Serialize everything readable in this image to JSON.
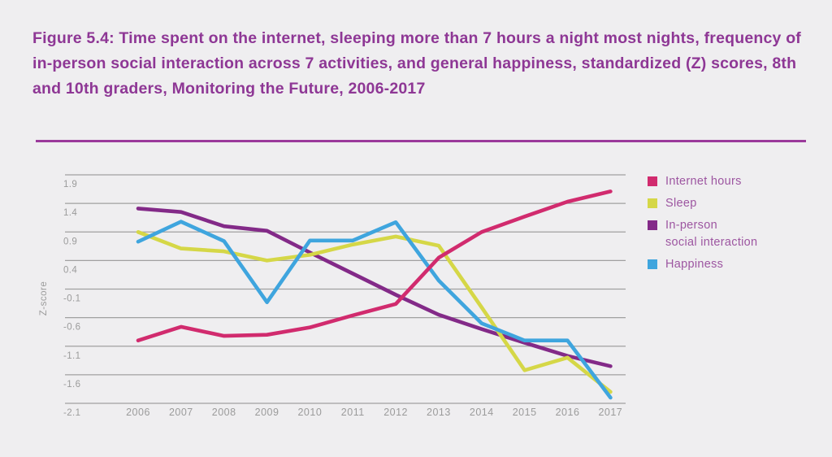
{
  "figure": {
    "title": "Figure 5.4: Time spent on the internet, sleeping more than 7 hours a night most nights, frequency of in-person social interaction across 7 activities, and general happiness, standardized (Z) scores, 8th and 10th graders, Monitoring the Future, 2006-2017"
  },
  "colors": {
    "background": "#efeef0",
    "title_text": "#8e3795",
    "title_rule": "#9b3a9b",
    "gridline": "#a0a0a0",
    "axis_text": "#9b9b9b",
    "legend_text": "#9d56a1"
  },
  "chart_data": {
    "type": "line",
    "title": "Time spent on the internet, sleeping more than 7 hours a night most nights, frequency of in-person social interaction across 7 activities, and general happiness, standardized (Z) scores, 8th and 10th graders, Monitoring the Future, 2006-2017",
    "x": [
      2006,
      2007,
      2008,
      2009,
      2010,
      2011,
      2012,
      2013,
      2014,
      2015,
      2016,
      2017
    ],
    "x_tick_labels": [
      "2006",
      "2007",
      "2008",
      "2009",
      "2010",
      "2011",
      "2012",
      "2013",
      "2014",
      "2015",
      "2016",
      "2017"
    ],
    "ylabel": "Z-score",
    "xlabel": "",
    "ylim": [
      -2.1,
      1.9
    ],
    "y_tick_labels": [
      "1.9",
      "1.4",
      "0.9",
      "0.4",
      "-0.1",
      "-0.6",
      "-1.1",
      "-1.6",
      "-2.1"
    ],
    "grid": "horizontal",
    "legend_position": "right",
    "series": [
      {
        "name": "Internet hours",
        "label_lines": [
          "Internet hours"
        ],
        "color": "#d12b6e",
        "values": [
          -1.0,
          -0.76,
          -0.92,
          -0.9,
          -0.77,
          -0.56,
          -0.36,
          0.45,
          0.9,
          1.17,
          1.43,
          1.61
        ]
      },
      {
        "name": "Sleep",
        "label_lines": [
          "Sleep"
        ],
        "color": "#d5d747",
        "values": [
          0.9,
          0.61,
          0.56,
          0.4,
          0.5,
          0.68,
          0.82,
          0.66,
          -0.42,
          -1.52,
          -1.3,
          -1.9
        ]
      },
      {
        "name": "In-person social interaction",
        "label_lines": [
          "In-person",
          "social interaction"
        ],
        "color": "#832a88",
        "values": [
          1.31,
          1.25,
          1.0,
          0.92,
          0.54,
          0.17,
          -0.2,
          -0.55,
          -0.8,
          -1.04,
          -1.27,
          -1.45
        ]
      },
      {
        "name": "Happiness",
        "label_lines": [
          "Happiness"
        ],
        "color": "#3fa5de",
        "values": [
          0.73,
          1.08,
          0.74,
          -0.33,
          0.75,
          0.75,
          1.07,
          0.05,
          -0.7,
          -1.0,
          -1.0,
          -2.0
        ]
      }
    ]
  }
}
